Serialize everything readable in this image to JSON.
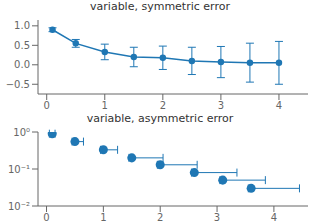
{
  "chart_data": [
    {
      "type": "line",
      "title": "variable, symmetric error",
      "x": [
        0.1,
        0.5,
        1.0,
        1.5,
        2.0,
        2.5,
        3.0,
        3.5,
        4.0
      ],
      "series": [
        {
          "values": [
            0.9,
            0.55,
            0.33,
            0.2,
            0.18,
            0.1,
            0.07,
            0.055,
            0.05
          ],
          "yerr": [
            0.05,
            0.1,
            0.2,
            0.25,
            0.3,
            0.35,
            0.4,
            0.5,
            0.55
          ],
          "color": "#1f77b4",
          "marker": "circle",
          "line_style": "solid"
        }
      ],
      "xlim": [
        -0.15,
        4.5
      ],
      "xticks": [
        0,
        1,
        2,
        3,
        4
      ],
      "ylim": [
        -0.75,
        1.15
      ],
      "yticks": [
        {
          "value": -0.5,
          "label": "−0.5"
        },
        {
          "value": 0,
          "label": "0.0"
        },
        0.5,
        {
          "value": 1.0,
          "label": "1.0"
        }
      ],
      "grid": false
    },
    {
      "type": "scatter",
      "title": "variable, asymmetric error",
      "log": "y",
      "x": [
        0.1,
        0.5,
        1.0,
        1.5,
        2.0,
        2.6,
        3.1,
        3.6
      ],
      "series": [
        {
          "values": [
            0.9,
            0.55,
            0.33,
            0.2,
            0.13,
            0.08,
            0.05,
            0.03
          ],
          "xerr_low": [
            0.05,
            0.05,
            0.05,
            0.05,
            0.05,
            0.05,
            0.05,
            0.05
          ],
          "xerr_high": [
            0.05,
            0.15,
            0.25,
            0.55,
            0.65,
            0.75,
            0.75,
            0.85
          ],
          "color": "#1f77b4",
          "marker": "circle",
          "line_style": "none"
        }
      ],
      "xlim": [
        -0.15,
        4.6
      ],
      "xticks": [
        0,
        1,
        2,
        3,
        4
      ],
      "ylim": [
        0.01,
        1
      ],
      "yticks": [
        {
          "value": 0.01,
          "label": "10⁻²"
        },
        {
          "value": 0.1,
          "label": "10⁻¹"
        },
        {
          "value": 1,
          "label": "10⁰"
        }
      ],
      "grid": false
    }
  ]
}
